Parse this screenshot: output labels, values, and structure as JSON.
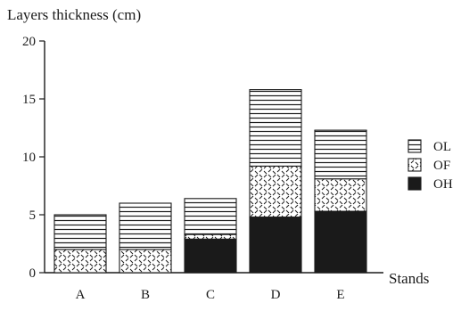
{
  "chart_data": {
    "type": "bar",
    "stacked": true,
    "ylabel": "Layers thickness (cm)",
    "xlabel": "Stands",
    "categories": [
      "A",
      "B",
      "C",
      "D",
      "E"
    ],
    "ylim": [
      0,
      20
    ],
    "yticks": [
      0,
      5,
      10,
      15,
      20
    ],
    "series": [
      {
        "name": "OH",
        "values": [
          0,
          0,
          2.9,
          4.8,
          5.3
        ],
        "fill": "solid-black"
      },
      {
        "name": "OF",
        "values": [
          2.0,
          2.0,
          0.4,
          4.4,
          2.8
        ],
        "fill": "dashed-pattern"
      },
      {
        "name": "OL",
        "values": [
          3.0,
          4.0,
          3.1,
          6.6,
          4.2
        ],
        "fill": "horizontal-lines"
      }
    ],
    "legend": {
      "position": "right",
      "order": [
        "OL",
        "OF",
        "OH"
      ]
    },
    "grid": false
  },
  "colors": {
    "ink": "#1a1a1a",
    "background": "#ffffff"
  }
}
